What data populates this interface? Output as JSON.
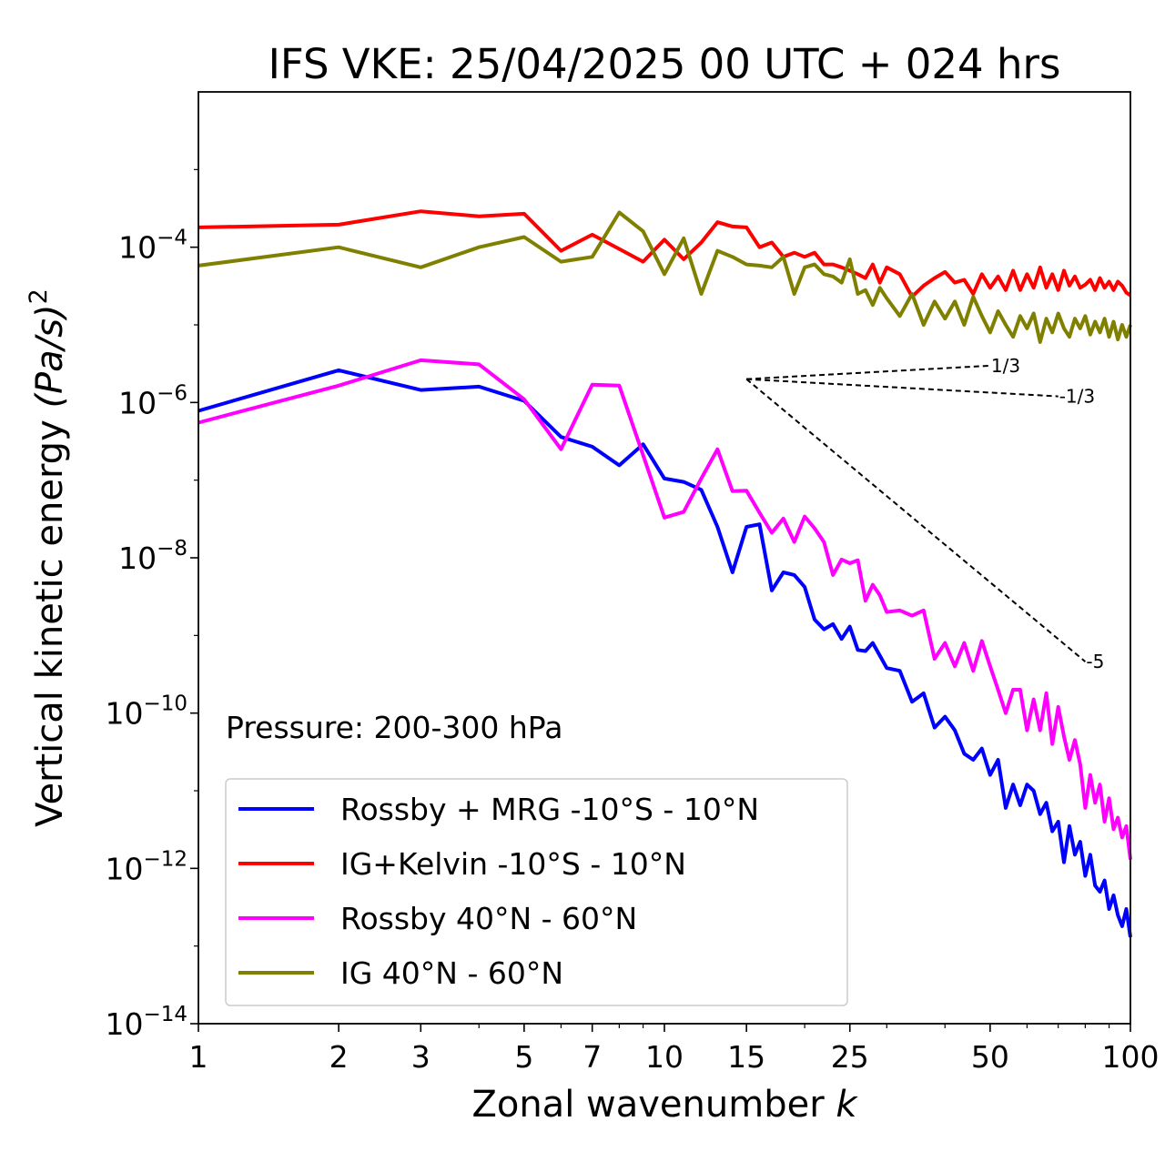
{
  "chart_data": {
    "type": "line",
    "title": "IFS VKE: 25/04/2025 00 UTC + 024 hrs",
    "xlabel": "Zonal wavenumber",
    "xlabel_symbol": "k",
    "ylabel": "Vertical kinetic energy",
    "ylabel_unit": "(Pa/s)",
    "ylabel_exponent": "2",
    "x_scale": "log",
    "y_scale": "log",
    "xlim": [
      1,
      100
    ],
    "ylim": [
      1e-14,
      0.01
    ],
    "x_ticks": [
      1,
      2,
      3,
      5,
      7,
      10,
      15,
      25,
      50,
      100
    ],
    "x_tick_labels": [
      "1",
      "2",
      "3",
      "5",
      "7",
      "10",
      "15",
      "25",
      "50",
      "100"
    ],
    "y_ticks": [
      -4,
      -6,
      -8,
      -10,
      -12,
      -14
    ],
    "y_tick_base": "10",
    "y_tick_exponents": [
      "−4",
      "−6",
      "−8",
      "−10",
      "−12",
      "−14"
    ],
    "annotation": "Pressure: 200-300 hPa",
    "legend_position": "lower-left",
    "grid": false,
    "series": [
      {
        "name": "Rossby + MRG -10°S - 10°N",
        "color": "#0000ff",
        "x": [
          1,
          2,
          3,
          4,
          5,
          6,
          7,
          8,
          9,
          10,
          11,
          12,
          13,
          14,
          15,
          16,
          17,
          18,
          19,
          20,
          21,
          22,
          23,
          24,
          25,
          26,
          27,
          28,
          29,
          30,
          32,
          34,
          36,
          38,
          40,
          42,
          44,
          46,
          48,
          50,
          52,
          54,
          56,
          58,
          60,
          62,
          64,
          66,
          68,
          70,
          72,
          74,
          76,
          78,
          80,
          82,
          84,
          86,
          88,
          90,
          92,
          94,
          96,
          98,
          100
        ],
        "y": [
          7.8e-07,
          2.6e-06,
          1.45e-06,
          1.6e-06,
          1.05e-06,
          3.6e-07,
          2.7e-07,
          1.55e-07,
          2.9e-07,
          1.05e-07,
          9.5e-08,
          7.5e-08,
          2.5e-08,
          6.5e-09,
          2.5e-08,
          2.7e-08,
          3.8e-09,
          6.5e-09,
          6e-09,
          4.2e-09,
          1.6e-09,
          1.2e-09,
          1.4e-09,
          9e-10,
          1.3e-09,
          6.5e-10,
          6.3e-10,
          8e-10,
          5.5e-10,
          3.8e-10,
          3.5e-10,
          1.4e-10,
          1.8e-10,
          6.5e-11,
          9e-11,
          6e-11,
          3e-11,
          2.5e-11,
          3.5e-11,
          1.6e-11,
          2.5e-11,
          6e-12,
          1.2e-11,
          6.5e-12,
          1.2e-11,
          1e-11,
          5e-12,
          7e-12,
          3e-12,
          4e-12,
          1.2e-12,
          3.5e-12,
          1.5e-12,
          2.2e-12,
          8e-13,
          1.5e-12,
          6e-13,
          5e-13,
          7e-13,
          3e-13,
          4.5e-13,
          2.5e-13,
          1.8e-13,
          3e-13,
          1.3e-13
        ]
      },
      {
        "name": "IG+Kelvin -10°S - 10°N",
        "color": "#ff0000",
        "x": [
          1,
          2,
          3,
          4,
          5,
          6,
          7,
          8,
          9,
          10,
          11,
          12,
          13,
          14,
          15,
          16,
          17,
          18,
          19,
          20,
          21,
          22,
          23,
          24,
          25,
          26,
          27,
          28,
          29,
          30,
          32,
          34,
          36,
          38,
          40,
          42,
          44,
          46,
          48,
          50,
          52,
          54,
          56,
          58,
          60,
          62,
          64,
          66,
          68,
          70,
          72,
          74,
          76,
          78,
          80,
          82,
          84,
          86,
          88,
          90,
          92,
          94,
          96,
          98,
          100
        ],
        "y": [
          0.00018,
          0.000195,
          0.00029,
          0.00025,
          0.00027,
          9e-05,
          0.000145,
          9.5e-05,
          6.5e-05,
          0.000125,
          7e-05,
          0.000115,
          0.00021,
          0.000185,
          0.00018,
          0.0001,
          0.000115,
          7.5e-05,
          8.5e-05,
          7.5e-05,
          8.5e-05,
          6e-05,
          6e-05,
          5.5e-05,
          5e-05,
          4.5e-05,
          4e-05,
          6e-05,
          3.5e-05,
          5.5e-05,
          4.5e-05,
          2.3e-05,
          3.2e-05,
          4e-05,
          4.8e-05,
          3.5e-05,
          3.8e-05,
          2.5e-05,
          4.5e-05,
          3e-05,
          4.2e-05,
          2.8e-05,
          5e-05,
          2.8e-05,
          4.5e-05,
          3e-05,
          5.5e-05,
          3e-05,
          4.5e-05,
          2.8e-05,
          5e-05,
          3.2e-05,
          4.2e-05,
          3e-05,
          3.3e-05,
          3.8e-05,
          2.8e-05,
          4e-05,
          3e-05,
          3.6e-05,
          2.8e-05,
          3.6e-05,
          3.2e-05,
          2.6e-05,
          2.4e-05
        ]
      },
      {
        "name": "Rossby 40°N - 60°N",
        "color": "#ff00ff",
        "x": [
          1,
          2,
          3,
          4,
          5,
          6,
          7,
          8,
          9,
          10,
          11,
          12,
          13,
          14,
          15,
          16,
          17,
          18,
          19,
          20,
          21,
          22,
          23,
          24,
          25,
          26,
          27,
          28,
          29,
          30,
          32,
          34,
          36,
          38,
          40,
          42,
          44,
          46,
          48,
          50,
          52,
          54,
          56,
          58,
          60,
          62,
          64,
          66,
          68,
          70,
          72,
          74,
          76,
          78,
          80,
          82,
          84,
          86,
          88,
          90,
          92,
          94,
          96,
          98,
          100
        ],
        "y": [
          5.5e-07,
          1.65e-06,
          3.5e-06,
          3.1e-06,
          1.1e-06,
          2.5e-07,
          1.7e-06,
          1.65e-06,
          2.1e-07,
          3.3e-08,
          3.9e-08,
          1.05e-07,
          2.5e-07,
          7.2e-08,
          7.3e-08,
          3.8e-08,
          2.1e-08,
          3.2e-08,
          1.6e-08,
          3.4e-08,
          2.4e-08,
          1.6e-08,
          6e-09,
          9.5e-09,
          8.5e-09,
          9.3e-09,
          2.8e-09,
          4.5e-09,
          3.3e-09,
          2e-09,
          2.1e-09,
          1.8e-09,
          2.1e-09,
          5e-10,
          8e-10,
          4e-10,
          8e-10,
          3.5e-10,
          8.5e-10,
          4e-10,
          2e-10,
          1e-10,
          2e-10,
          2e-10,
          6e-11,
          1.5e-10,
          6e-11,
          1.8e-10,
          4e-11,
          1.2e-10,
          5e-11,
          2.5e-11,
          4.5e-11,
          2.2e-11,
          6e-12,
          1.6e-11,
          7e-12,
          1.2e-11,
          4e-12,
          8e-12,
          3.2e-12,
          4.5e-12,
          2.5e-12,
          3.5e-12,
          1.3e-12
        ]
      },
      {
        "name": "IG 40°N - 60°N",
        "color": "#808000",
        "x": [
          1,
          2,
          3,
          4,
          5,
          6,
          7,
          8,
          9,
          10,
          11,
          12,
          13,
          14,
          15,
          16,
          17,
          18,
          19,
          20,
          21,
          22,
          23,
          24,
          25,
          26,
          27,
          28,
          29,
          30,
          32,
          34,
          36,
          38,
          40,
          42,
          44,
          46,
          48,
          50,
          52,
          54,
          56,
          58,
          60,
          62,
          64,
          66,
          68,
          70,
          72,
          74,
          76,
          78,
          80,
          82,
          84,
          86,
          88,
          90,
          92,
          94,
          96,
          98,
          100
        ],
        "y": [
          5.8e-05,
          0.0001,
          5.5e-05,
          0.0001,
          0.000135,
          6.5e-05,
          7.5e-05,
          0.00028,
          0.00016,
          4.5e-05,
          0.00013,
          2.5e-05,
          9e-05,
          7.5e-05,
          6e-05,
          5.8e-05,
          5.5e-05,
          7.5e-05,
          2.5e-05,
          5.5e-05,
          6e-05,
          4.5e-05,
          4.2e-05,
          3.5e-05,
          7e-05,
          2.5e-05,
          2.8e-05,
          1.8e-05,
          3e-05,
          2.2e-05,
          1.3e-05,
          2.5e-05,
          1e-05,
          2e-05,
          1.2e-05,
          2e-05,
          1e-05,
          2.3e-05,
          1.3e-05,
          8e-06,
          1.5e-05,
          1e-05,
          7e-06,
          1.3e-05,
          9e-06,
          1.4e-05,
          6e-06,
          1.2e-05,
          8e-06,
          1.4e-05,
          9e-06,
          7e-06,
          1.2e-05,
          9e-06,
          1.3e-05,
          7.5e-06,
          1.1e-05,
          8e-06,
          1.2e-05,
          7e-06,
          1.1e-05,
          6.5e-06,
          1e-05,
          7e-06,
          1e-05
        ]
      }
    ],
    "reference_slopes": [
      {
        "label": "1/3",
        "x0": 15,
        "y0": 2e-06,
        "x1": 50,
        "y1": 2.98e-06
      },
      {
        "label": "-1/3",
        "x0": 15,
        "y0": 2e-06,
        "x1": 70,
        "y1": 1.2e-06
      },
      {
        "label": "-5",
        "x0": 15,
        "y0": 2e-06,
        "x1": 80,
        "y1": 4.6e-10
      }
    ]
  }
}
